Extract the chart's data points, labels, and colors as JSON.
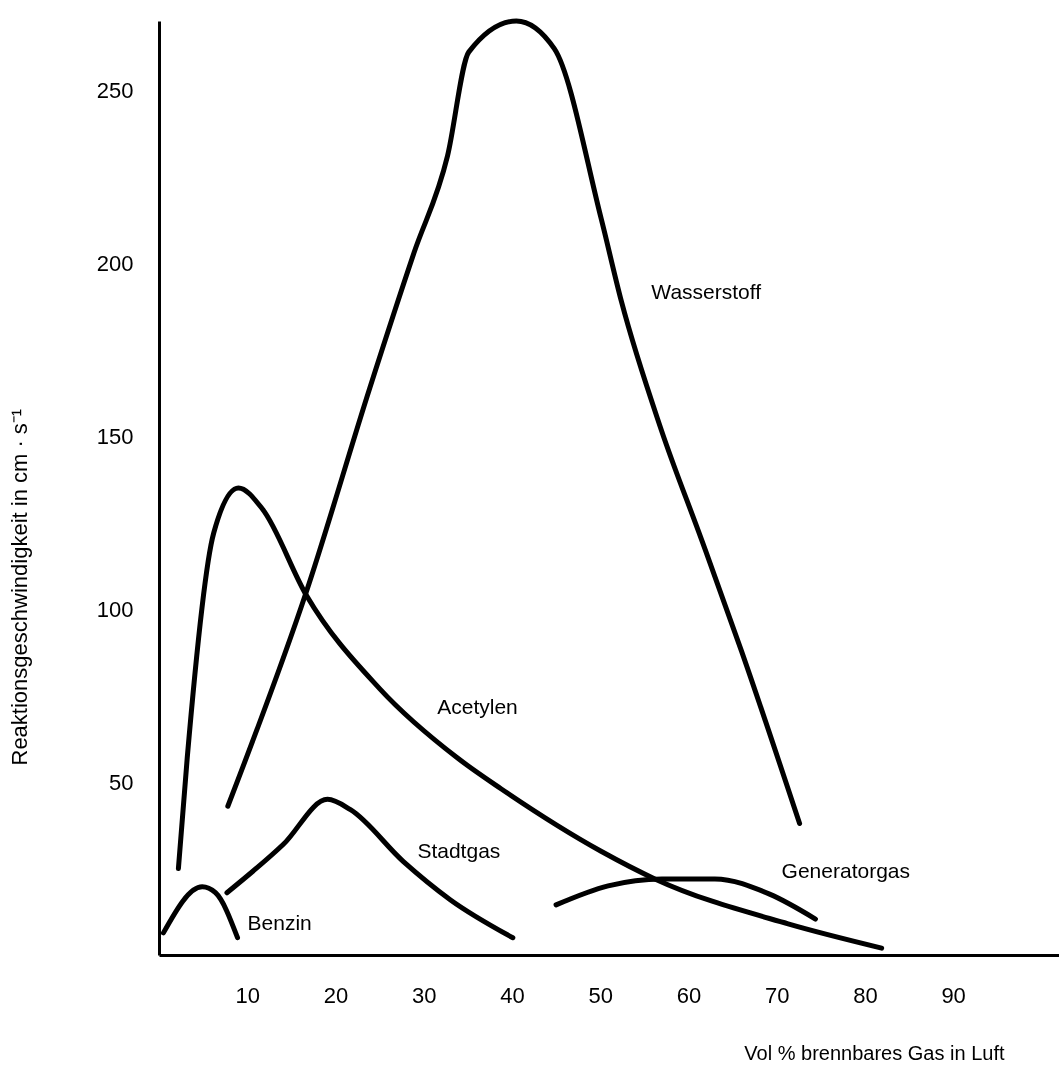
{
  "chart_data": {
    "type": "line",
    "xlabel": "Vol % brennbares Gas in Luft",
    "ylabel": "Reaktionsgeschwindigkeit in cm · s⁻¹",
    "xlim": [
      0,
      102
    ],
    "ylim": [
      0,
      270
    ],
    "xticks": [
      10,
      20,
      30,
      40,
      50,
      60,
      70,
      80,
      90
    ],
    "yticks": [
      50,
      100,
      150,
      200,
      250
    ],
    "grid": false,
    "series": [
      {
        "name": "Wasserstoff",
        "color": "#000000",
        "x": [
          7.8,
          16.7,
          23.9,
          28.9,
          32.7,
          35.1,
          40.5,
          44.8,
          50.1,
          52.4,
          56.9,
          61.5,
          66,
          72.6
        ],
        "values": [
          43,
          105,
          164,
          203,
          231,
          261,
          270,
          262,
          213,
          189,
          152,
          120,
          88,
          38
        ]
      },
      {
        "name": "Acetylen",
        "color": "#000000",
        "x": [
          2.2,
          3.2,
          6.2,
          9,
          11.7,
          16.7,
          25,
          33.8,
          38.8,
          50.1,
          56.2,
          71.3,
          81.9
        ],
        "values": [
          25,
          57,
          122,
          135,
          129,
          104,
          77,
          57,
          48,
          30,
          22,
          9,
          2
        ]
      },
      {
        "name": "Stadtgas",
        "color": "#000000",
        "x": [
          7.7,
          14.1,
          19.1,
          21.7,
          27.7,
          33,
          40.1
        ],
        "values": [
          18,
          32,
          45,
          42,
          27,
          16,
          5
        ]
      },
      {
        "name": "Generatorgas",
        "color": "#000000",
        "x": [
          45,
          50.9,
          57,
          63,
          69.2,
          74.4
        ],
        "values": [
          14.5,
          20,
          22,
          22,
          17.6,
          10.4
        ]
      },
      {
        "name": "Benzin",
        "color": "#000000",
        "x": [
          0.5,
          4.9,
          6.4,
          8.9
        ],
        "values": [
          6.4,
          19.7,
          18,
          5
        ]
      }
    ]
  }
}
